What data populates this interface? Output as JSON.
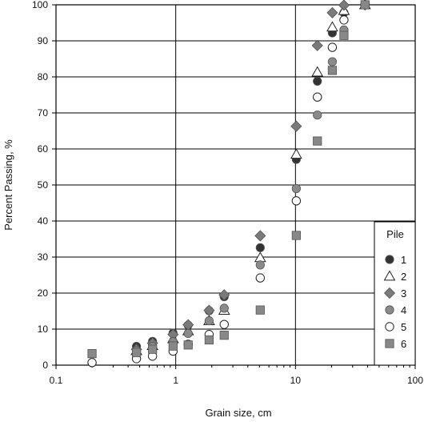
{
  "chart_data": {
    "type": "scatter",
    "title": "",
    "xlabel": "Grain size, cm",
    "ylabel": "Percent Passing, %",
    "x_scale": "log",
    "xlim": [
      0.1,
      100
    ],
    "ylim": [
      0,
      100
    ],
    "x_ticks": [
      0.1,
      1,
      10,
      100
    ],
    "x_tick_labels": [
      "0.1",
      "1",
      "10",
      "100"
    ],
    "y_ticks": [
      0,
      10,
      20,
      30,
      40,
      50,
      60,
      70,
      80,
      90,
      100
    ],
    "y_tick_labels": [
      "0",
      "10",
      "20",
      "30",
      "40",
      "50",
      "60",
      "70",
      "80",
      "90",
      "100"
    ],
    "grid": true,
    "legend": {
      "title": "Pile",
      "position": "bottom-right"
    },
    "series": [
      {
        "name": "1",
        "marker": "filled-circle",
        "color": "#333333",
        "points": [
          {
            "x": 0.47,
            "y": 5.2
          },
          {
            "x": 0.64,
            "y": 6.6
          },
          {
            "x": 0.95,
            "y": 8.9
          },
          {
            "x": 1.27,
            "y": 11.1
          },
          {
            "x": 1.9,
            "y": 15.1
          },
          {
            "x": 2.54,
            "y": 19.0
          },
          {
            "x": 5.08,
            "y": 32.6
          },
          {
            "x": 10.16,
            "y": 57.1
          },
          {
            "x": 15.24,
            "y": 78.8
          },
          {
            "x": 20.32,
            "y": 92.2
          },
          {
            "x": 25.4,
            "y": 97.8
          },
          {
            "x": 38.1,
            "y": 100
          }
        ]
      },
      {
        "name": "2",
        "marker": "open-triangle",
        "color": "#333333",
        "points": [
          {
            "x": 0.47,
            "y": 4.0
          },
          {
            "x": 0.64,
            "y": 5.4
          },
          {
            "x": 0.95,
            "y": 7.3
          },
          {
            "x": 1.27,
            "y": 9.5
          },
          {
            "x": 1.9,
            "y": 12.3
          },
          {
            "x": 2.54,
            "y": 15.2
          },
          {
            "x": 5.08,
            "y": 29.8
          },
          {
            "x": 10.16,
            "y": 58.5
          },
          {
            "x": 15.24,
            "y": 81.3
          },
          {
            "x": 20.32,
            "y": 93.8
          },
          {
            "x": 25.4,
            "y": 98.4
          },
          {
            "x": 38.1,
            "y": 100
          }
        ]
      },
      {
        "name": "3",
        "marker": "filled-diamond",
        "color": "#7a7a7a",
        "points": [
          {
            "x": 0.47,
            "y": 4.4
          },
          {
            "x": 0.64,
            "y": 6.1
          },
          {
            "x": 0.95,
            "y": 8.5
          },
          {
            "x": 1.27,
            "y": 11.2
          },
          {
            "x": 1.9,
            "y": 15.2
          },
          {
            "x": 2.54,
            "y": 19.5
          },
          {
            "x": 5.08,
            "y": 35.9
          },
          {
            "x": 10.16,
            "y": 66.3
          },
          {
            "x": 15.24,
            "y": 88.7
          },
          {
            "x": 20.32,
            "y": 97.8
          },
          {
            "x": 25.4,
            "y": 99.9
          },
          {
            "x": 38.1,
            "y": 100
          }
        ]
      },
      {
        "name": "4",
        "marker": "filled-circle",
        "color": "#8a8a8a",
        "points": [
          {
            "x": 0.47,
            "y": 4.0
          },
          {
            "x": 0.64,
            "y": 5.2
          },
          {
            "x": 0.95,
            "y": 6.5
          },
          {
            "x": 1.27,
            "y": 8.8
          },
          {
            "x": 1.9,
            "y": 12.3
          },
          {
            "x": 2.54,
            "y": 15.8
          },
          {
            "x": 5.08,
            "y": 27.8
          },
          {
            "x": 10.16,
            "y": 49.0
          },
          {
            "x": 15.24,
            "y": 69.4
          },
          {
            "x": 20.32,
            "y": 84.2
          },
          {
            "x": 25.4,
            "y": 93.0
          },
          {
            "x": 38.1,
            "y": 100
          }
        ]
      },
      {
        "name": "5",
        "marker": "open-circle",
        "color": "#333333",
        "points": [
          {
            "x": 0.2,
            "y": 0.7
          },
          {
            "x": 0.47,
            "y": 1.8
          },
          {
            "x": 0.64,
            "y": 2.5
          },
          {
            "x": 0.95,
            "y": 3.9
          },
          {
            "x": 1.27,
            "y": 5.8
          },
          {
            "x": 1.9,
            "y": 8.5
          },
          {
            "x": 2.54,
            "y": 11.3
          },
          {
            "x": 5.08,
            "y": 24.2
          },
          {
            "x": 10.16,
            "y": 45.6
          },
          {
            "x": 15.24,
            "y": 74.4
          },
          {
            "x": 20.32,
            "y": 88.2
          },
          {
            "x": 25.4,
            "y": 95.8
          },
          {
            "x": 38.1,
            "y": 100
          }
        ]
      },
      {
        "name": "6",
        "marker": "filled-square",
        "color": "#888888",
        "points": [
          {
            "x": 0.2,
            "y": 3.2
          },
          {
            "x": 0.47,
            "y": 3.5
          },
          {
            "x": 0.64,
            "y": 4.4
          },
          {
            "x": 0.95,
            "y": 5.3
          },
          {
            "x": 1.27,
            "y": 5.6
          },
          {
            "x": 1.9,
            "y": 7.0
          },
          {
            "x": 2.54,
            "y": 8.3
          },
          {
            "x": 5.08,
            "y": 15.3
          },
          {
            "x": 10.16,
            "y": 36.0
          },
          {
            "x": 15.24,
            "y": 62.2
          },
          {
            "x": 20.32,
            "y": 81.8
          },
          {
            "x": 25.4,
            "y": 91.5
          },
          {
            "x": 38.1,
            "y": 100
          }
        ]
      }
    ]
  }
}
